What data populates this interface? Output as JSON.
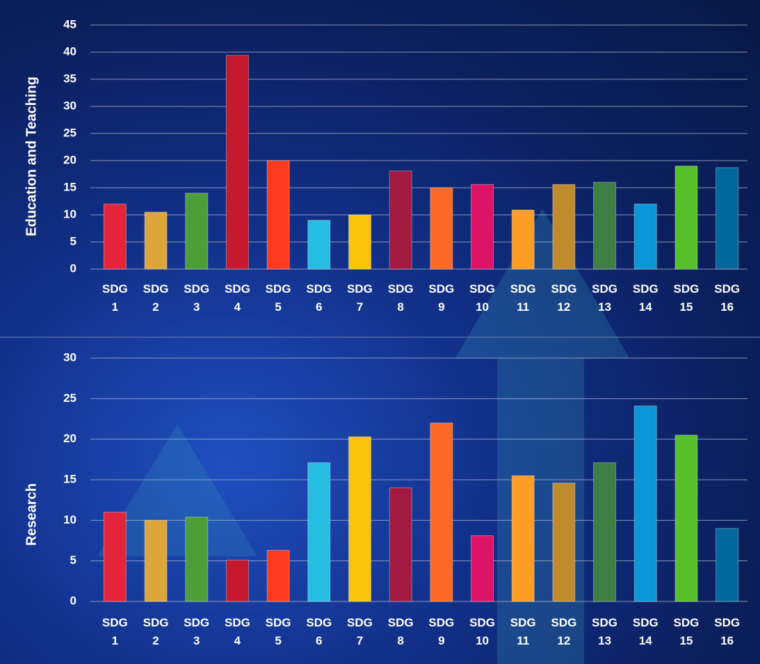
{
  "chart_data": [
    {
      "type": "bar",
      "ylabel": "Education and Teaching",
      "categories": [
        "SDG 1",
        "SDG 2",
        "SDG 3",
        "SDG 4",
        "SDG 5",
        "SDG 6",
        "SDG 7",
        "SDG 8",
        "SDG 9",
        "SDG 10",
        "SDG 11",
        "SDG 12",
        "SDG 13",
        "SDG 14",
        "SDG 15",
        "SDG 16"
      ],
      "values": [
        12,
        10.5,
        14,
        39.4,
        20,
        9,
        10,
        18.1,
        15,
        15.6,
        10.9,
        15.6,
        16,
        12,
        19,
        18.7
      ],
      "colors": [
        "#e5243b",
        "#dda63a",
        "#4c9f38",
        "#c5192d",
        "#ff3a21",
        "#26bde2",
        "#fcc30b",
        "#a21942",
        "#fd6925",
        "#dd1367",
        "#fd9d24",
        "#bf8b2e",
        "#3f7e44",
        "#0a97d9",
        "#56c02b",
        "#00689d"
      ],
      "ylim": [
        0,
        45
      ],
      "yticks": [
        0,
        5,
        10,
        15,
        20,
        25,
        30,
        35,
        40,
        45
      ],
      "grid": true
    },
    {
      "type": "bar",
      "ylabel": "Research",
      "categories": [
        "SDG 1",
        "SDG 2",
        "SDG 3",
        "SDG 4",
        "SDG 5",
        "SDG 6",
        "SDG 7",
        "SDG 8",
        "SDG 9",
        "SDG 10",
        "SDG 11",
        "SDG 12",
        "SDG 13",
        "SDG 14",
        "SDG 15",
        "SDG 16"
      ],
      "values": [
        11,
        10,
        10.4,
        5.1,
        6.3,
        17.1,
        20.3,
        14,
        22,
        8.1,
        15.5,
        14.6,
        17.1,
        24.1,
        20.5,
        9
      ],
      "colors": [
        "#e5243b",
        "#dda63a",
        "#4c9f38",
        "#c5192d",
        "#ff3a21",
        "#26bde2",
        "#fcc30b",
        "#a21942",
        "#fd6925",
        "#dd1367",
        "#fd9d24",
        "#bf8b2e",
        "#3f7e44",
        "#0a97d9",
        "#56c02b",
        "#00689d"
      ],
      "ylim": [
        0,
        30
      ],
      "yticks": [
        0,
        5,
        10,
        15,
        20,
        25,
        30
      ],
      "grid": true
    }
  ]
}
